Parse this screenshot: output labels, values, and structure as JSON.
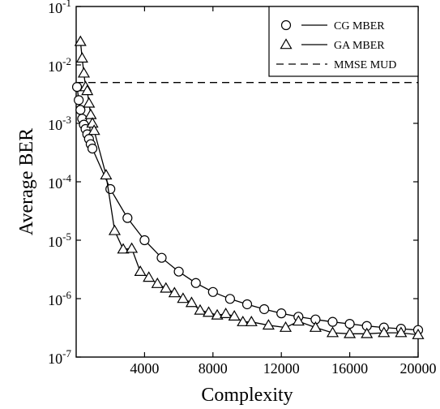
{
  "chart_data": {
    "type": "line",
    "xlabel": "Complexity",
    "ylabel": "Average BER",
    "xlim": [
      0,
      20000
    ],
    "ylim": [
      1e-07,
      0.1
    ],
    "yscale": "log",
    "grid": false,
    "legend_placement": "top-right",
    "x_ticks": [
      {
        "value": 4000,
        "label": "4000"
      },
      {
        "value": 8000,
        "label": "8000"
      },
      {
        "value": 12000,
        "label": "12000"
      },
      {
        "value": 16000,
        "label": "16000"
      },
      {
        "value": 20000,
        "label": "20000"
      }
    ],
    "y_ticks": [
      {
        "value": 1e-07,
        "base": "10",
        "exp": "-7"
      },
      {
        "value": 1e-06,
        "base": "10",
        "exp": "-6"
      },
      {
        "value": 1e-05,
        "base": "10",
        "exp": "-5"
      },
      {
        "value": 0.0001,
        "base": "10",
        "exp": "-4"
      },
      {
        "value": 0.001,
        "base": "10",
        "exp": "-3"
      },
      {
        "value": 0.01,
        "base": "10",
        "exp": "-2"
      },
      {
        "value": 0.1,
        "base": "10",
        "exp": "-1"
      }
    ],
    "series": [
      {
        "name": "CG MBER",
        "marker": "circle",
        "line": "solid",
        "points": [
          [
            50,
            0.0042
          ],
          [
            150,
            0.0025
          ],
          [
            250,
            0.0017
          ],
          [
            350,
            0.0012
          ],
          [
            450,
            0.00095
          ],
          [
            550,
            0.0008
          ],
          [
            650,
            0.00065
          ],
          [
            750,
            0.00054
          ],
          [
            850,
            0.00044
          ],
          [
            950,
            0.00037
          ],
          [
            2000,
            7.5e-05
          ],
          [
            3000,
            2.4e-05
          ],
          [
            4000,
            1e-05
          ],
          [
            5000,
            5e-06
          ],
          [
            6000,
            2.9e-06
          ],
          [
            7000,
            1.85e-06
          ],
          [
            8000,
            1.3e-06
          ],
          [
            9000,
            9.9e-07
          ],
          [
            10000,
            8e-07
          ],
          [
            11000,
            6.6e-07
          ],
          [
            12000,
            5.6e-07
          ],
          [
            13000,
            4.9e-07
          ],
          [
            14000,
            4.4e-07
          ],
          [
            15000,
            4e-07
          ],
          [
            16000,
            3.7e-07
          ],
          [
            17000,
            3.4e-07
          ],
          [
            18000,
            3.2e-07
          ],
          [
            19000,
            3.05e-07
          ],
          [
            20000,
            2.9e-07
          ]
        ]
      },
      {
        "name": "GA MBER",
        "marker": "triangle",
        "line": "solid",
        "points": [
          [
            250,
            0.025
          ],
          [
            350,
            0.013
          ],
          [
            450,
            0.0072
          ],
          [
            550,
            0.0042
          ],
          [
            650,
            0.0036
          ],
          [
            750,
            0.0022
          ],
          [
            850,
            0.0014
          ],
          [
            950,
            0.001
          ],
          [
            1050,
            0.00075
          ],
          [
            1750,
            0.00013
          ],
          [
            2250,
            1.45e-05
          ],
          [
            2750,
            7e-06
          ],
          [
            3250,
            7.2e-06
          ],
          [
            3750,
            2.9e-06
          ],
          [
            4250,
            2.3e-06
          ],
          [
            4750,
            1.8e-06
          ],
          [
            5250,
            1.5e-06
          ],
          [
            5750,
            1.25e-06
          ],
          [
            6250,
            1e-06
          ],
          [
            6750,
            8.5e-07
          ],
          [
            7250,
            6.3e-07
          ],
          [
            7750,
            5.8e-07
          ],
          [
            8250,
            5.2e-07
          ],
          [
            8750,
            5.5e-07
          ],
          [
            9250,
            5e-07
          ],
          [
            9750,
            4e-07
          ],
          [
            10250,
            4e-07
          ],
          [
            11250,
            3.5e-07
          ],
          [
            12250,
            3.2e-07
          ],
          [
            13000,
            4.1e-07
          ],
          [
            14000,
            3.2e-07
          ],
          [
            15000,
            2.6e-07
          ],
          [
            16000,
            2.5e-07
          ],
          [
            17000,
            2.5e-07
          ],
          [
            18000,
            2.6e-07
          ],
          [
            19000,
            2.6e-07
          ],
          [
            20000,
            2.4e-07
          ]
        ]
      },
      {
        "name": "MMSE MUD",
        "marker": "none",
        "line": "dashed",
        "points": [
          [
            0,
            0.005
          ],
          [
            20000,
            0.005
          ]
        ]
      }
    ]
  }
}
